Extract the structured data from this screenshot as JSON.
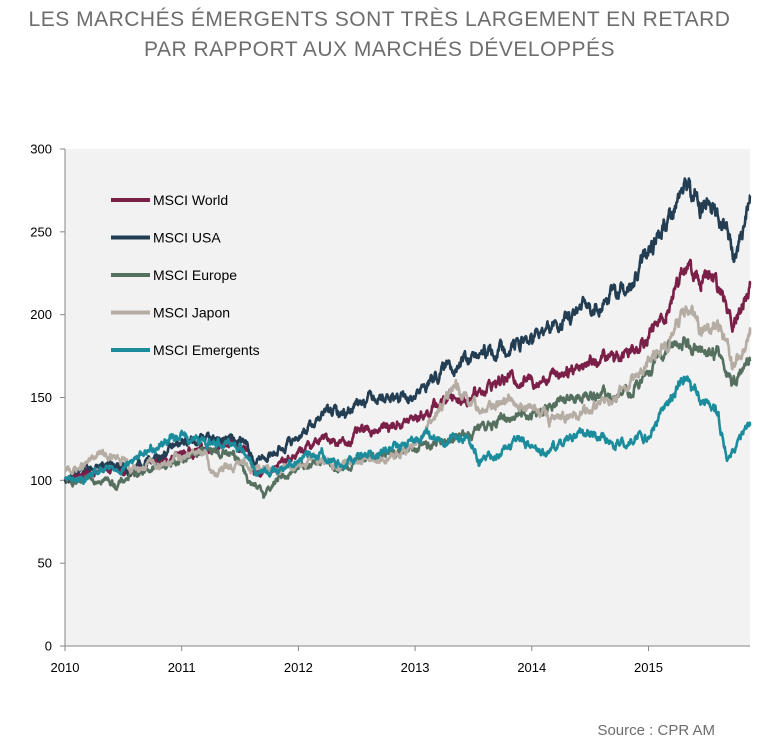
{
  "title_line1": "LES MARCHÉS ÉMERGENTS SONT TRÈS LARGEMENT EN RETARD",
  "title_line2": "PAR RAPPORT AUX MARCHÉS DÉVELOPPÉS",
  "source": "Source : CPR AM",
  "chart_data": {
    "type": "line",
    "x_ticks": [
      "2010",
      "2011",
      "2012",
      "2013",
      "2014",
      "2015"
    ],
    "y_ticks": [
      0,
      50,
      100,
      150,
      200,
      250,
      300
    ],
    "xlim": [
      2010.0,
      2015.87
    ],
    "ylim": [
      0,
      300
    ],
    "legend_position": "top-left",
    "grid": false,
    "series": [
      {
        "name": "MSCI World",
        "color": "#7a1f47",
        "x": [
          2010.0,
          2010.15,
          2010.4,
          2010.55,
          2010.8,
          2011.0,
          2011.2,
          2011.4,
          2011.55,
          2011.62,
          2011.75,
          2011.9,
          2012.1,
          2012.25,
          2012.4,
          2012.5,
          2012.65,
          2012.8,
          2012.95,
          2013.1,
          2013.3,
          2013.45,
          2013.6,
          2013.8,
          2014.0,
          2014.1,
          2014.3,
          2014.5,
          2014.7,
          2014.85,
          2015.0,
          2015.15,
          2015.3,
          2015.45,
          2015.55,
          2015.65,
          2015.75,
          2015.87
        ],
        "values": [
          100,
          104,
          108,
          103,
          112,
          116,
          120,
          122,
          118,
          104,
          108,
          111,
          121,
          126,
          122,
          128,
          131,
          133,
          136,
          141,
          151,
          149,
          156,
          162,
          160,
          162,
          167,
          172,
          175,
          179,
          188,
          200,
          230,
          220,
          222,
          208,
          195,
          218
        ]
      },
      {
        "name": "MSCI USA",
        "color": "#233d52",
        "x": [
          2010.0,
          2010.15,
          2010.4,
          2010.55,
          2010.8,
          2011.0,
          2011.2,
          2011.4,
          2011.55,
          2011.62,
          2011.75,
          2011.9,
          2012.1,
          2012.25,
          2012.4,
          2012.5,
          2012.65,
          2012.8,
          2012.95,
          2013.1,
          2013.3,
          2013.45,
          2013.6,
          2013.8,
          2014.0,
          2014.1,
          2014.3,
          2014.5,
          2014.7,
          2014.85,
          2015.0,
          2015.15,
          2015.3,
          2015.45,
          2015.55,
          2015.65,
          2015.75,
          2015.87
        ],
        "values": [
          100,
          106,
          110,
          105,
          115,
          122,
          126,
          125,
          121,
          111,
          115,
          121,
          133,
          142,
          140,
          148,
          152,
          150,
          148,
          158,
          170,
          172,
          176,
          181,
          185,
          189,
          197,
          205,
          212,
          215,
          238,
          255,
          278,
          266,
          265,
          255,
          232,
          272
        ]
      },
      {
        "name": "MSCI Europe",
        "color": "#56705f",
        "x": [
          2010.0,
          2010.15,
          2010.3,
          2010.45,
          2010.6,
          2010.8,
          2011.0,
          2011.15,
          2011.35,
          2011.5,
          2011.6,
          2011.7,
          2011.85,
          2012.0,
          2012.2,
          2012.35,
          2012.5,
          2012.7,
          2012.9,
          2013.1,
          2013.3,
          2013.5,
          2013.7,
          2013.9,
          2014.1,
          2014.3,
          2014.5,
          2014.7,
          2014.85,
          2015.0,
          2015.15,
          2015.3,
          2015.45,
          2015.6,
          2015.72,
          2015.87
        ],
        "values": [
          100,
          98,
          102,
          97,
          105,
          108,
          112,
          118,
          116,
          113,
          96,
          92,
          102,
          108,
          113,
          105,
          112,
          115,
          116,
          121,
          126,
          128,
          136,
          140,
          142,
          148,
          152,
          150,
          153,
          165,
          178,
          185,
          180,
          176,
          160,
          172
        ]
      },
      {
        "name": "MSCI Japon",
        "color": "#b5aca4",
        "x": [
          2010.0,
          2010.15,
          2010.3,
          2010.45,
          2010.6,
          2010.8,
          2011.0,
          2011.2,
          2011.25,
          2011.4,
          2011.55,
          2011.7,
          2011.85,
          2012.0,
          2012.2,
          2012.35,
          2012.5,
          2012.7,
          2012.9,
          2013.1,
          2013.35,
          2013.45,
          2013.6,
          2013.8,
          2014.0,
          2014.15,
          2014.3,
          2014.5,
          2014.7,
          2014.85,
          2015.0,
          2015.15,
          2015.3,
          2015.45,
          2015.6,
          2015.72,
          2015.87
        ],
        "values": [
          105,
          108,
          116,
          112,
          107,
          110,
          114,
          118,
          104,
          108,
          110,
          106,
          107,
          110,
          113,
          108,
          111,
          112,
          116,
          130,
          158,
          145,
          142,
          150,
          143,
          138,
          136,
          142,
          152,
          160,
          170,
          182,
          202,
          192,
          195,
          168,
          188
        ]
      },
      {
        "name": "MSCI Emergents",
        "color": "#1a8c9c",
        "x": [
          2010.0,
          2010.15,
          2010.3,
          2010.5,
          2010.7,
          2010.9,
          2011.0,
          2011.2,
          2011.4,
          2011.55,
          2011.65,
          2011.8,
          2012.0,
          2012.2,
          2012.35,
          2012.5,
          2012.7,
          2012.9,
          2013.1,
          2013.3,
          2013.45,
          2013.55,
          2013.7,
          2013.9,
          2014.1,
          2014.3,
          2014.5,
          2014.7,
          2014.85,
          2015.0,
          2015.1,
          2015.3,
          2015.45,
          2015.6,
          2015.67,
          2015.75,
          2015.87
        ],
        "values": [
          101,
          100,
          105,
          108,
          118,
          125,
          128,
          122,
          124,
          118,
          104,
          106,
          113,
          116,
          110,
          115,
          117,
          121,
          127,
          123,
          127,
          112,
          116,
          124,
          116,
          125,
          130,
          121,
          125,
          128,
          138,
          162,
          148,
          140,
          113,
          120,
          133
        ]
      }
    ]
  }
}
